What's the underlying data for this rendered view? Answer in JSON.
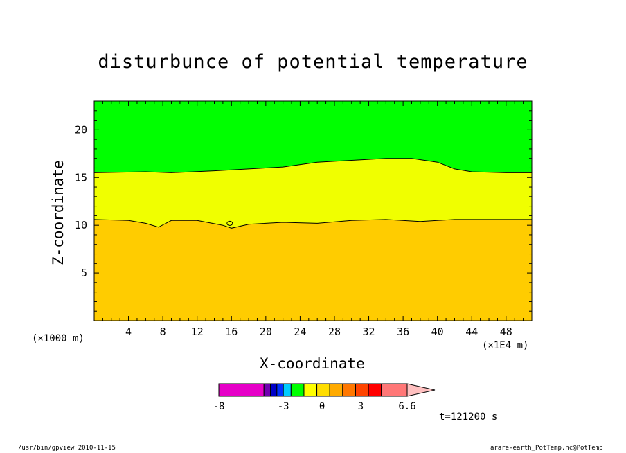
{
  "chart_data": {
    "type": "heatmap",
    "title": "disturbunce of potential temperature",
    "xlabel": "X-coordinate",
    "ylabel": "Z-coordinate",
    "x_unit_left": "(×1000 m)",
    "x_unit_right": "(×1E4 m)",
    "time_label": "t=121200 s",
    "xlim": [
      0,
      51
    ],
    "ylim": [
      0,
      23
    ],
    "x_ticks": [
      "4",
      "8",
      "12",
      "16",
      "20",
      "24",
      "28",
      "32",
      "36",
      "40",
      "44",
      "48"
    ],
    "x_tick_values": [
      4,
      8,
      12,
      16,
      20,
      24,
      28,
      32,
      36,
      40,
      44,
      48
    ],
    "y_ticks": [
      "5",
      "10",
      "15",
      "20"
    ],
    "y_tick_values": [
      5,
      10,
      15,
      20
    ],
    "regions": [
      {
        "level": "lowest",
        "color": "#ffcc00"
      },
      {
        "level": "middle",
        "color": "#f0ff00"
      },
      {
        "level": "top",
        "color": "#00ff00"
      }
    ],
    "contours": [
      {
        "name": "lower boundary",
        "x": [
          0,
          4,
          6,
          7.5,
          9,
          12,
          15,
          16,
          18,
          22,
          26,
          30,
          34,
          38,
          42,
          46,
          51
        ],
        "y": [
          10.6,
          10.5,
          10.2,
          9.8,
          10.5,
          10.5,
          10.0,
          9.7,
          10.1,
          10.3,
          10.2,
          10.5,
          10.6,
          10.4,
          10.6,
          10.6,
          10.6
        ]
      },
      {
        "name": "upper boundary",
        "x": [
          0,
          6,
          9,
          14,
          18,
          22,
          26,
          30,
          34,
          37,
          40,
          42,
          44,
          48,
          51
        ],
        "y": [
          15.5,
          15.6,
          15.5,
          15.7,
          15.9,
          16.1,
          16.6,
          16.8,
          17.0,
          17.0,
          16.6,
          15.9,
          15.6,
          15.5,
          15.5
        ]
      }
    ],
    "small_closed_contour": {
      "x": 15.8,
      "y": 10.2
    },
    "colorbar": {
      "labels": [
        "-8",
        "-3",
        "0",
        "3",
        "6.6"
      ],
      "label_values": [
        -8,
        -3,
        0,
        3,
        6.6
      ],
      "bins": [
        {
          "from": -8,
          "to": -4.5,
          "color": "#e600c8"
        },
        {
          "from": -4.5,
          "to": -4,
          "color": "#7000b0"
        },
        {
          "from": -4,
          "to": -3.5,
          "color": "#0000c8"
        },
        {
          "from": -3.5,
          "to": -3,
          "color": "#0030ff"
        },
        {
          "from": -3,
          "to": -2.4,
          "color": "#00ccff"
        },
        {
          "from": -2.4,
          "to": -1.4,
          "color": "#00ff00"
        },
        {
          "from": -1.4,
          "to": -0.4,
          "color": "#ffff00"
        },
        {
          "from": -0.4,
          "to": 0.6,
          "color": "#ffdd00"
        },
        {
          "from": 0.6,
          "to": 1.6,
          "color": "#ffaa00"
        },
        {
          "from": 1.6,
          "to": 2.6,
          "color": "#ff7700"
        },
        {
          "from": 2.6,
          "to": 3.6,
          "color": "#ff4400"
        },
        {
          "from": 3.6,
          "to": 4.6,
          "color": "#ff0000"
        },
        {
          "from": 4.6,
          "to": 6.6,
          "color": "#ff7777"
        }
      ],
      "over_color": "#ffc0c0"
    }
  },
  "footer": {
    "left": "/usr/bin/gpview   2010-11-15",
    "right": "arare-earth_PotTemp.nc@PotTemp"
  }
}
